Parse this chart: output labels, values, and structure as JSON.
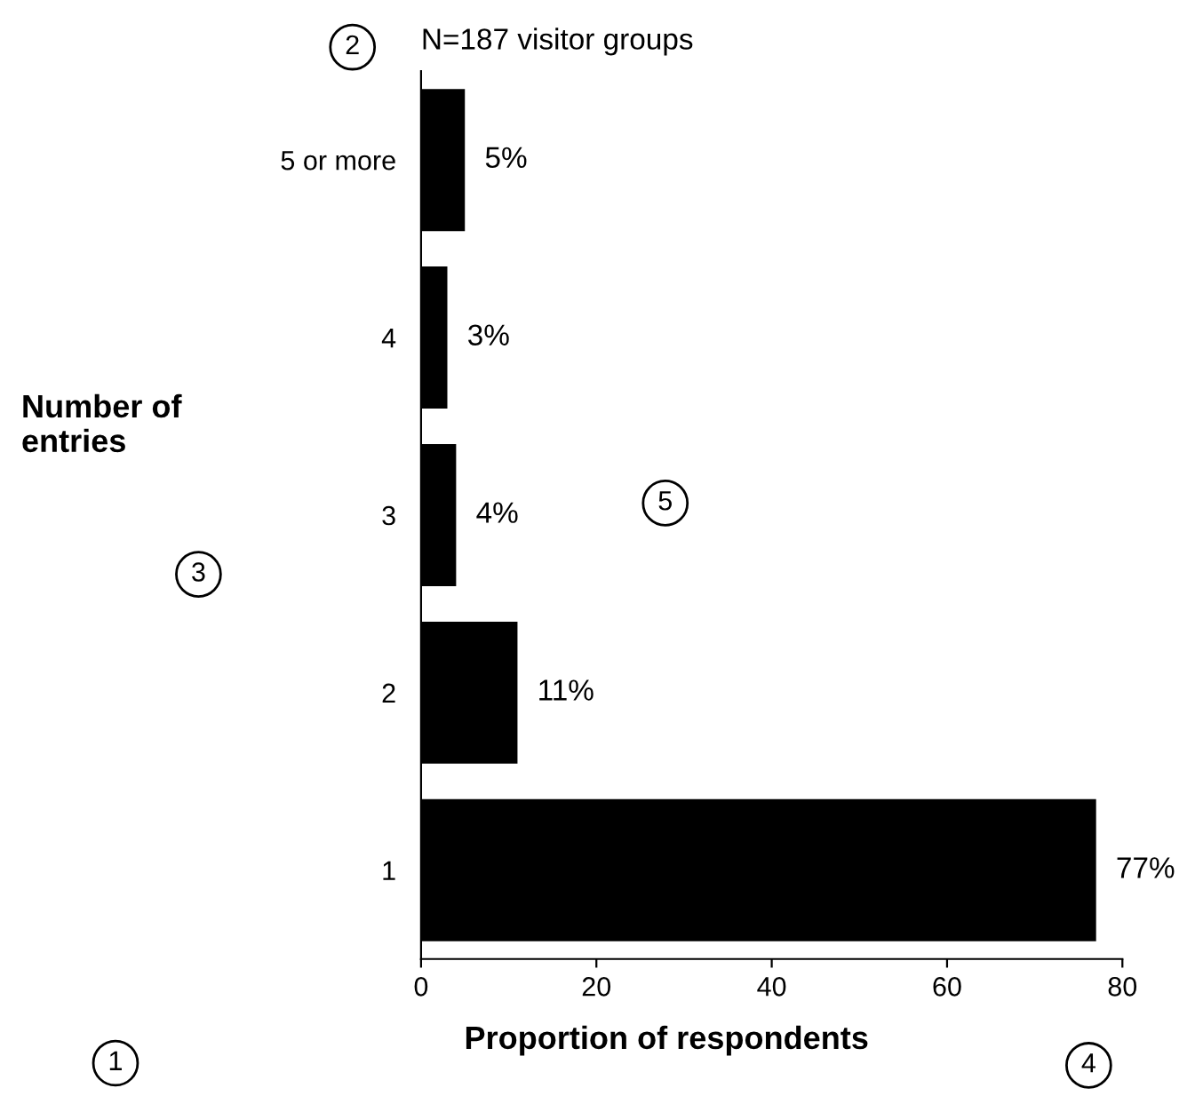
{
  "chart_data": {
    "type": "bar",
    "orientation": "horizontal",
    "categories": [
      "5 or more",
      "4",
      "3",
      "2",
      "1"
    ],
    "values": [
      5,
      3,
      4,
      11,
      77
    ],
    "color": "#000000",
    "value_labels": [
      "5%",
      "3%",
      "4%",
      "11%",
      "77%"
    ],
    "xlim": [
      0,
      80
    ],
    "xticks": [
      0,
      20,
      40,
      60,
      80
    ],
    "xlabel": "Proportion of respondents",
    "ylabel": "Number of\nentries",
    "annotations": [
      "N=187 visitor groups",
      "1",
      "2",
      "3",
      "4",
      "5"
    ],
    "grid": false,
    "legend": false
  }
}
